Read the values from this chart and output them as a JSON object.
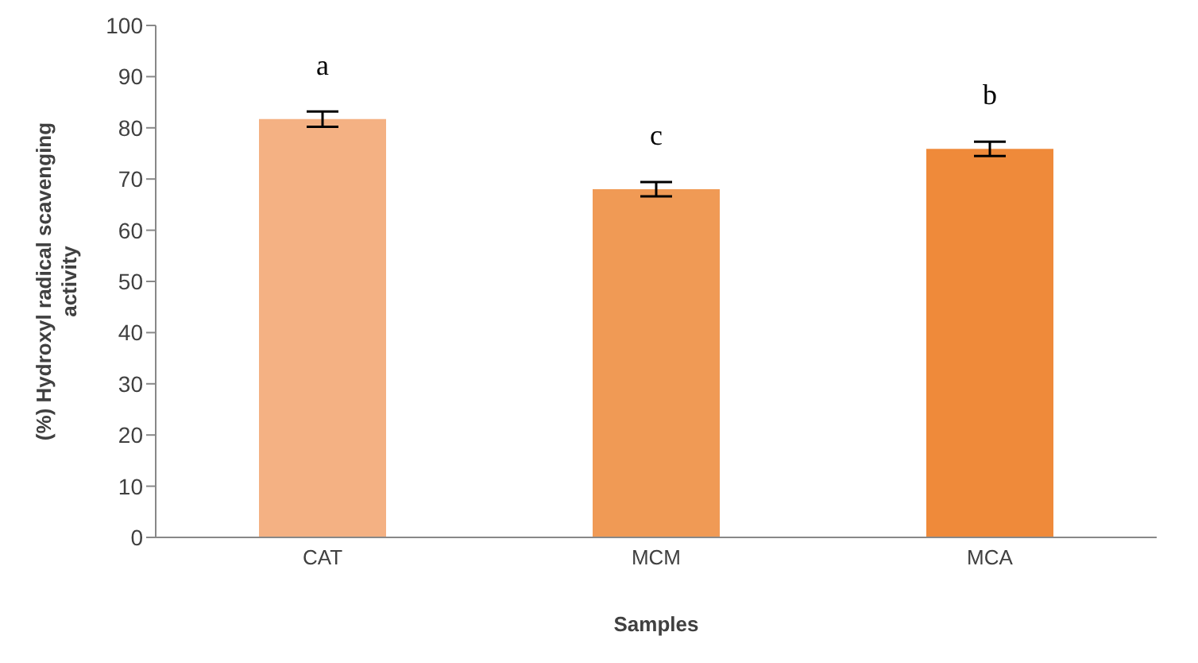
{
  "chart_data": {
    "type": "bar",
    "categories": [
      "CAT",
      "MCM",
      "MCA"
    ],
    "values": [
      81.7,
      68,
      75.9
    ],
    "errors": [
      1.5,
      1.4,
      1.4
    ],
    "colors": [
      "#f4b183",
      "#f09a55",
      "#ef8a3a"
    ],
    "xlabel": "Samples",
    "ylabel": "(%) Hydroxyl radical scavenging activity",
    "ylim": [
      0,
      100
    ],
    "yticks": [
      0,
      10,
      20,
      30,
      40,
      50,
      60,
      70,
      80,
      90,
      100
    ],
    "grid": false,
    "legend": false,
    "annotations": [
      "a",
      "c",
      "b"
    ]
  }
}
